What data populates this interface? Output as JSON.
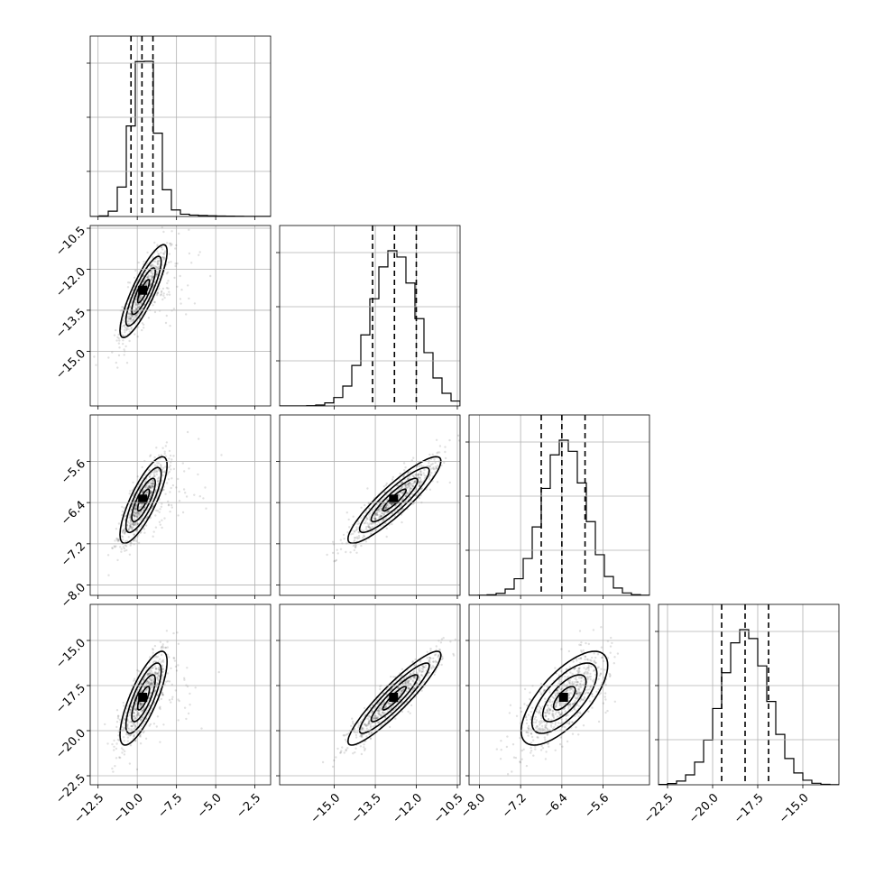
{
  "chart_data": {
    "type": "corner",
    "params": [
      {
        "range": [
          -13.0,
          -1.5
        ],
        "ticks": [
          -12.5,
          -10.0,
          -7.5,
          -5.0,
          -2.5
        ],
        "tick_labels": [
          "−12.5",
          "−10.0",
          "−7.5",
          "−5.0",
          "−2.5"
        ],
        "mean": -9.6,
        "sd": 0.75,
        "quantiles": [
          -10.4,
          -9.7,
          -9.0
        ],
        "skew_tail": true
      },
      {
        "range": [
          -17.0,
          -10.4
        ],
        "ticks": [
          -15.0,
          -13.5,
          -12.0,
          -10.5
        ],
        "tick_labels": [
          "−15.0",
          "−13.5",
          "−12.0",
          "−10.5"
        ],
        "mean": -12.8,
        "sd": 0.85,
        "quantiles": [
          -13.6,
          -12.8,
          -12.0
        ],
        "skew_tail": false
      },
      {
        "range": [
          -8.2,
          -4.7
        ],
        "ticks": [
          -8.0,
          -7.2,
          -6.4,
          -5.6
        ],
        "tick_labels": [
          "−8.0",
          "−7.2",
          "−6.4",
          "−5.6"
        ],
        "mean": -6.35,
        "sd": 0.42,
        "quantiles": [
          -6.8,
          -6.4,
          -5.95
        ],
        "skew_tail": false
      },
      {
        "range": [
          -23.0,
          -13.0
        ],
        "ticks": [
          -22.5,
          -20.0,
          -17.5,
          -15.0
        ],
        "tick_labels": [
          "−22.5",
          "−20.0",
          "−17.5",
          "−15.0"
        ],
        "mean": -18.2,
        "sd": 1.3,
        "quantiles": [
          -19.5,
          -18.2,
          -16.9
        ],
        "skew_tail": false
      }
    ],
    "correlations": [
      [
        1.0,
        0.85,
        0.8,
        0.78
      ],
      [
        0.85,
        1.0,
        0.9,
        0.92
      ],
      [
        0.8,
        0.9,
        1.0,
        0.7
      ],
      [
        0.78,
        0.92,
        0.7,
        1.0
      ]
    ],
    "grid": true,
    "xlabels": [
      "",
      "",
      "",
      ""
    ],
    "ylabels": [
      "",
      "",
      "",
      ""
    ]
  }
}
